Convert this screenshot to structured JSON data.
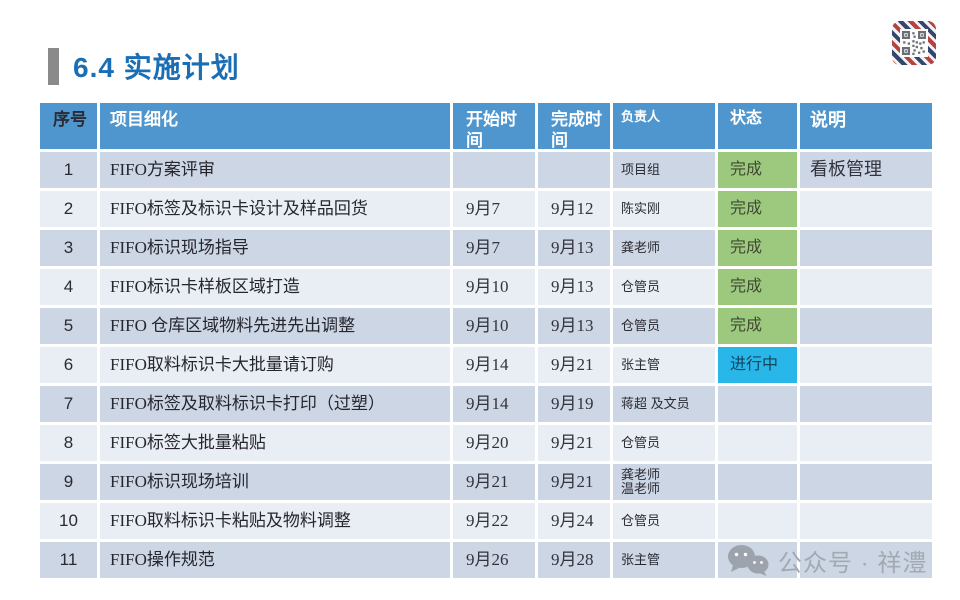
{
  "page": {
    "title": "6.4 实施计划"
  },
  "colors": {
    "title_color": "#1B6DB4",
    "title_bar": "#8A8A8A",
    "header_bg": "#4E96CD",
    "row_odd": "#CCD6E4",
    "row_even": "#E9EDF4",
    "status_done": "#9DC97E",
    "status_progress": "#29B6E8",
    "watermark": "#A2A9B2"
  },
  "watermark": {
    "icon": "wechat-icon",
    "text": "公众号 · 祥澧"
  },
  "header_badge": {
    "icon": "qr-code-icon"
  },
  "table": {
    "columns": [
      {
        "key": "no",
        "label": "序号"
      },
      {
        "key": "task",
        "label": "项目细化"
      },
      {
        "key": "start",
        "label": "开始时间"
      },
      {
        "key": "end",
        "label": "完成时间"
      },
      {
        "key": "owner",
        "label": "负责人"
      },
      {
        "key": "status",
        "label": "状态"
      },
      {
        "key": "note",
        "label": "说明"
      }
    ],
    "rows": [
      {
        "no": "1",
        "task": "FIFO方案评审",
        "start": "",
        "end": "",
        "owner": "项目组",
        "status": "完成",
        "status_type": "done",
        "note": "看板管理"
      },
      {
        "no": "2",
        "task": "FIFO标签及标识卡设计及样品回货",
        "start": "9月7",
        "end": "9月12",
        "owner": "陈实刚",
        "status": "完成",
        "status_type": "done",
        "note": ""
      },
      {
        "no": "3",
        "task": "FIFO标识现场指导",
        "start": "9月7",
        "end": "9月13",
        "owner": "龚老师",
        "status": "完成",
        "status_type": "done",
        "note": ""
      },
      {
        "no": "4",
        "task": "FIFO标识卡样板区域打造",
        "start": "9月10",
        "end": "9月13",
        "owner": "仓管员",
        "status": "完成",
        "status_type": "done",
        "note": ""
      },
      {
        "no": "5",
        "task": "FIFO 仓库区域物料先进先出调整",
        "start": "9月10",
        "end": "9月13",
        "owner": "仓管员",
        "status": "完成",
        "status_type": "done",
        "note": ""
      },
      {
        "no": "6",
        "task": "FIFO取料标识卡大批量请订购",
        "start": "9月14",
        "end": "9月21",
        "owner": "张主管",
        "status": "进行中",
        "status_type": "in-progress",
        "note": ""
      },
      {
        "no": "7",
        "task": "FIFO标签及取料标识卡打印（过塑）",
        "start": "9月14",
        "end": "9月19",
        "owner": "蒋超 及文员",
        "status": "",
        "status_type": "none",
        "note": ""
      },
      {
        "no": "8",
        "task": "FIFO标签大批量粘贴",
        "start": "9月20",
        "end": "9月21",
        "owner": "仓管员",
        "status": "",
        "status_type": "none",
        "note": ""
      },
      {
        "no": "9",
        "task": "FIFO标识现场培训",
        "start": "9月21",
        "end": "9月21",
        "owner": "龚老师\n温老师",
        "status": "",
        "status_type": "none",
        "note": ""
      },
      {
        "no": "10",
        "task": "FIFO取料标识卡粘贴及物料调整",
        "start": "9月22",
        "end": "9月24",
        "owner": "仓管员",
        "status": "",
        "status_type": "none",
        "note": ""
      },
      {
        "no": "11",
        "task": "FIFO操作规范",
        "start": "9月26",
        "end": "9月28",
        "owner": "张主管",
        "status": "",
        "status_type": "none",
        "note": ""
      }
    ]
  }
}
